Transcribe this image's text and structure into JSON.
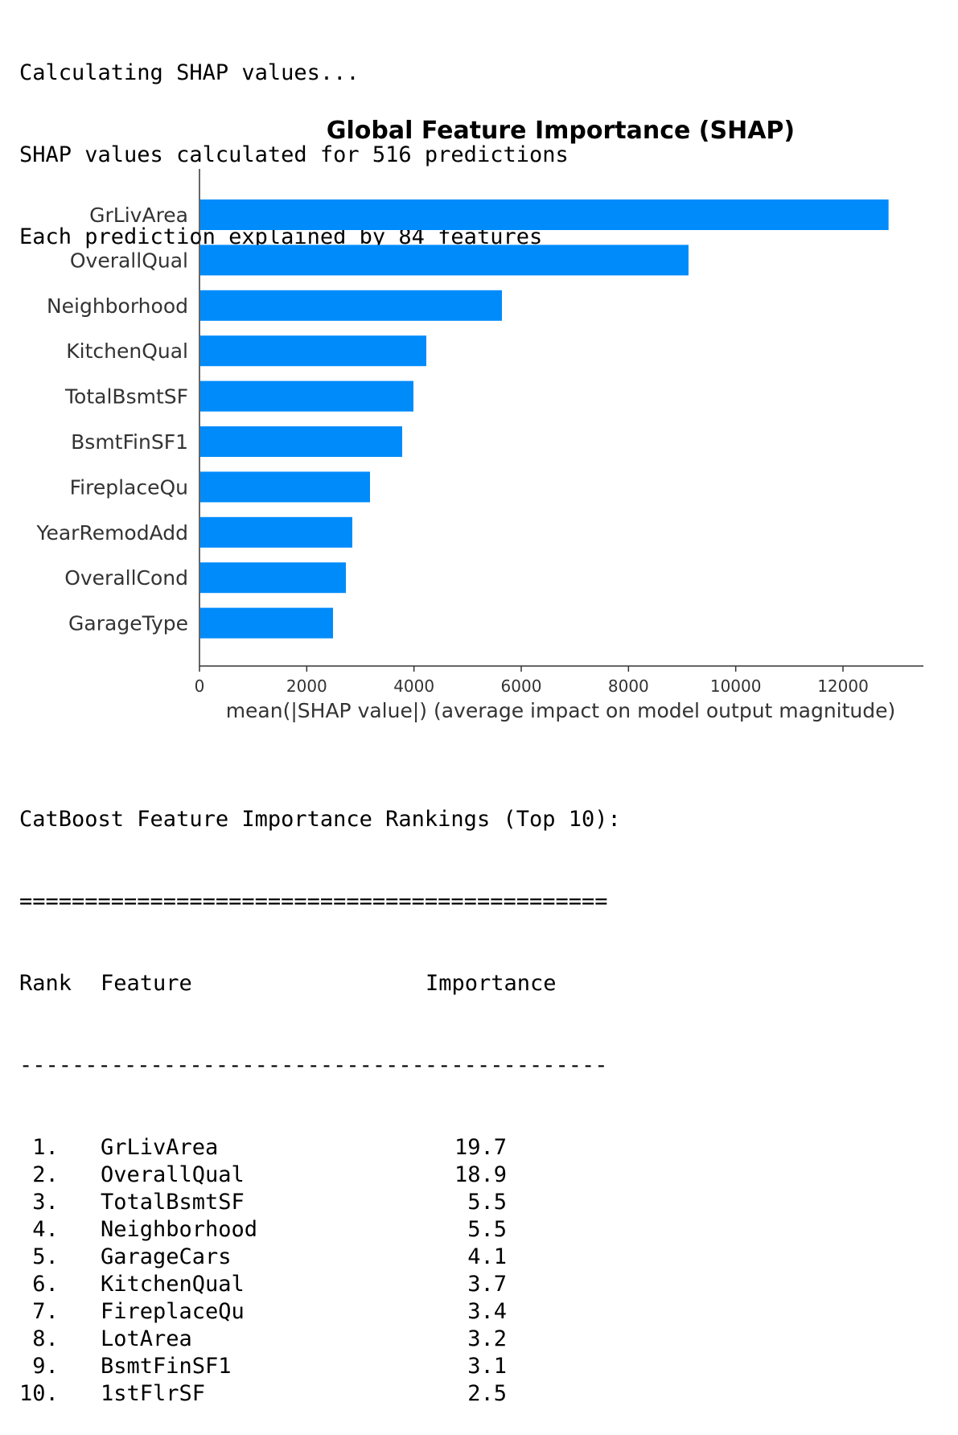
{
  "log": [
    "Calculating SHAP values...",
    "SHAP values calculated for 516 predictions",
    "Each prediction explained by 84 features"
  ],
  "chart_data": {
    "type": "bar",
    "orientation": "horizontal",
    "title": "Global Feature Importance (SHAP)",
    "xlabel": "mean(|SHAP value|) (average impact on model output magnitude)",
    "ylabel": "",
    "categories": [
      "GrLivArea",
      "OverallQual",
      "Neighborhood",
      "KitchenQual",
      "TotalBsmtSF",
      "BsmtFinSF1",
      "FireplaceQu",
      "YearRemodAdd",
      "OverallCond",
      "GarageType"
    ],
    "values": [
      12850,
      9120,
      5640,
      4230,
      3990,
      3780,
      3180,
      2850,
      2730,
      2490
    ],
    "xticks": [
      0,
      2000,
      4000,
      6000,
      8000,
      10000,
      12000
    ],
    "xlim": [
      0,
      13500
    ],
    "bar_color": "#008bfb",
    "grid": false
  },
  "rankings": {
    "heading": "CatBoost Feature Importance Rankings (Top 10):",
    "double_rule": "=============================================",
    "col_rank": "Rank",
    "col_feature": "Feature",
    "col_importance": "Importance",
    "single_rule": "---------------------------------------------",
    "rows": [
      {
        "rank": " 1.",
        "feature": "GrLivArea",
        "value": "19.7"
      },
      {
        "rank": " 2.",
        "feature": "OverallQual",
        "value": "18.9"
      },
      {
        "rank": " 3.",
        "feature": "TotalBsmtSF",
        "value": "5.5"
      },
      {
        "rank": " 4.",
        "feature": "Neighborhood",
        "value": "5.5"
      },
      {
        "rank": " 5.",
        "feature": "GarageCars",
        "value": "4.1"
      },
      {
        "rank": " 6.",
        "feature": "KitchenQual",
        "value": "3.7"
      },
      {
        "rank": " 7.",
        "feature": "FireplaceQu",
        "value": "3.4"
      },
      {
        "rank": " 8.",
        "feature": "LotArea",
        "value": "3.2"
      },
      {
        "rank": " 9.",
        "feature": "BsmtFinSF1",
        "value": "3.1"
      },
      {
        "rank": "10.",
        "feature": "1stFlrSF",
        "value": "2.5"
      }
    ]
  }
}
